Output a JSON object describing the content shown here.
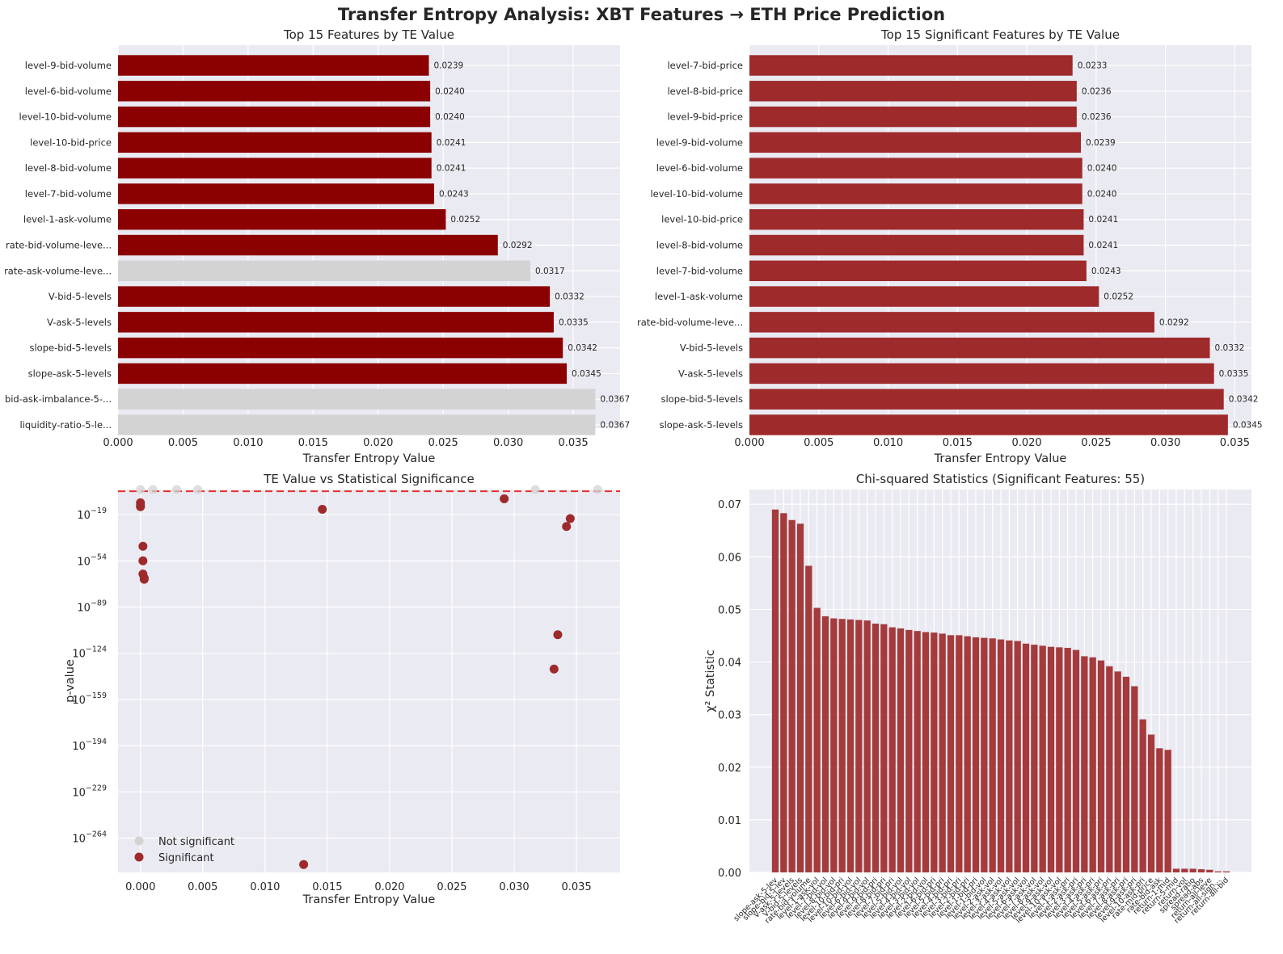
{
  "figure": {
    "title": "Transfer Entropy Analysis: XBT Features → ETH Price Prediction"
  },
  "colors": {
    "significant_dark": "#8b0000",
    "significant_mid": "#9e2a2b",
    "not_significant": "#d3d3d3",
    "threshold_line": "#e8312f",
    "panel_bg": "#eaeaf2",
    "grid": "#ffffff",
    "text": "#262626"
  },
  "chart_data": [
    {
      "type": "bar",
      "orientation": "horizontal",
      "title": "Top 15 Features by TE Value",
      "xlabel": "Transfer Entropy Value",
      "ylabel": "",
      "xlim": [
        0,
        0.0386
      ],
      "xticks": [
        "0.000",
        "0.005",
        "0.010",
        "0.015",
        "0.020",
        "0.025",
        "0.030",
        "0.035"
      ],
      "grid": true,
      "categories": [
        "level-9-bid-volume",
        "level-6-bid-volume",
        "level-10-bid-volume",
        "level-10-bid-price",
        "level-8-bid-volume",
        "level-7-bid-volume",
        "level-1-ask-volume",
        "rate-bid-volume-leve...",
        "rate-ask-volume-leve...",
        "V-bid-5-levels",
        "V-ask-5-levels",
        "slope-bid-5-levels",
        "slope-ask-5-levels",
        "bid-ask-imbalance-5-...",
        "liquidity-ratio-5-le..."
      ],
      "values": [
        0.0239,
        0.024,
        0.024,
        0.0241,
        0.0241,
        0.0243,
        0.0252,
        0.0292,
        0.0317,
        0.0332,
        0.0335,
        0.0342,
        0.0345,
        0.0367,
        0.0367
      ],
      "value_labels": [
        "0.0239",
        "0.0240",
        "0.0240",
        "0.0241",
        "0.0241",
        "0.0243",
        "0.0252",
        "0.0292",
        "0.0317",
        "0.0332",
        "0.0335",
        "0.0342",
        "0.0345",
        "0.0367",
        "0.0367"
      ],
      "significant": [
        true,
        true,
        true,
        true,
        true,
        true,
        true,
        true,
        false,
        true,
        true,
        true,
        true,
        false,
        false
      ]
    },
    {
      "type": "bar",
      "orientation": "horizontal",
      "title": "Top 15 Significant Features by TE Value",
      "xlabel": "Transfer Entropy Value",
      "ylabel": "",
      "xlim": [
        0,
        0.0362
      ],
      "xticks": [
        "0.000",
        "0.005",
        "0.010",
        "0.015",
        "0.020",
        "0.025",
        "0.030",
        "0.035"
      ],
      "grid": true,
      "categories": [
        "level-7-bid-price",
        "level-8-bid-price",
        "level-9-bid-price",
        "level-9-bid-volume",
        "level-6-bid-volume",
        "level-10-bid-volume",
        "level-10-bid-price",
        "level-8-bid-volume",
        "level-7-bid-volume",
        "level-1-ask-volume",
        "rate-bid-volume-leve...",
        "V-bid-5-levels",
        "V-ask-5-levels",
        "slope-bid-5-levels",
        "slope-ask-5-levels"
      ],
      "values": [
        0.0233,
        0.0236,
        0.0236,
        0.0239,
        0.024,
        0.024,
        0.0241,
        0.0241,
        0.0243,
        0.0252,
        0.0292,
        0.0332,
        0.0335,
        0.0342,
        0.0345
      ],
      "value_labels": [
        "0.0233",
        "0.0236",
        "0.0236",
        "0.0239",
        "0.0240",
        "0.0240",
        "0.0241",
        "0.0241",
        "0.0243",
        "0.0252",
        "0.0292",
        "0.0332",
        "0.0335",
        "0.0342",
        "0.0345"
      ]
    },
    {
      "type": "scatter",
      "title": "TE Value vs Statistical Significance",
      "xlabel": "Transfer Entropy Value",
      "ylabel": "p-value",
      "x_range": [
        -0.0018,
        0.0385
      ],
      "y_scale": "log",
      "log10_y_range": [
        -290,
        0
      ],
      "xticks": [
        "0.000",
        "0.005",
        "0.010",
        "0.015",
        "0.020",
        "0.025",
        "0.030",
        "0.035"
      ],
      "ytick_exponents": [
        "−19",
        "−54",
        "−89",
        "−124",
        "−159",
        "−194",
        "−229",
        "−264"
      ],
      "threshold_log10_p": -1.3,
      "legend": {
        "position": "lower-left",
        "entries": [
          "Not significant",
          "Significant"
        ]
      },
      "grid": true,
      "series": [
        {
          "name": "Not significant",
          "points": [
            [
              0.0,
              0
            ],
            [
              0.001,
              0
            ],
            [
              0.0029,
              0
            ],
            [
              0.0046,
              0
            ],
            [
              0.0317,
              0
            ],
            [
              0.0367,
              0
            ]
          ]
        },
        {
          "name": "Significant",
          "points": [
            [
              0.0,
              -10
            ],
            [
              0.0,
              -12
            ],
            [
              0.0,
              -13
            ],
            [
              0.0002,
              -43
            ],
            [
              0.0002,
              -54
            ],
            [
              0.0002,
              -64
            ],
            [
              0.0003,
              -67
            ],
            [
              0.0003,
              -68
            ],
            [
              0.0146,
              -15
            ],
            [
              0.0292,
              -7
            ],
            [
              0.0332,
              -136
            ],
            [
              0.0335,
              -110
            ],
            [
              0.0342,
              -28
            ],
            [
              0.0345,
              -22
            ],
            [
              0.0131,
              -284
            ]
          ]
        }
      ]
    },
    {
      "type": "bar",
      "title": "Chi-squared Statistics (Significant Features: 55)",
      "xlabel": "",
      "ylabel": "χ² Statistic",
      "ylim": [
        0,
        0.0728
      ],
      "yticks": [
        "0.00",
        "0.01",
        "0.02",
        "0.03",
        "0.04",
        "0.05",
        "0.06",
        "0.07"
      ],
      "grid": true,
      "categories": [
        "slope-ask-5-lev...",
        "slope-bid-5-lev...",
        "V-ask-5-levels",
        "V-bid-5-levels",
        "rate-bid-volume...",
        "level-1-ask-vol...",
        "level-7-bid-vol...",
        "level-8-bid-vol...",
        "level-10-bid-pri...",
        "level-10-bid-vol...",
        "level-6-bid-vol...",
        "level-9-bid-vol...",
        "level-9-bid-pri...",
        "level-8-bid-pri...",
        "level-7-bid-pri...",
        "level-5-bid-vol...",
        "level-4-bid-vol...",
        "level-3-bid-vol...",
        "level-2-bid-vol...",
        "level-6-bid-pri...",
        "level-5-bid-pri...",
        "level-4-bid-pri...",
        "level-3-bid-pri...",
        "level-2-bid-pri...",
        "level-1-bid-pri...",
        "level-1-bid-vol...",
        "level-2-ask-vol...",
        "level-3-ask-vol...",
        "level-4-ask-vol...",
        "level-5-ask-vol...",
        "level-6-ask-vol...",
        "level-7-ask-vol...",
        "level-8-ask-vol...",
        "level-9-ask-vol...",
        "level-10-ask-vol...",
        "level-1-ask-pri...",
        "level-2-ask-pri...",
        "level-3-ask-pri...",
        "level-4-ask-pri...",
        "level-5-ask-pri...",
        "level-6-ask-pri...",
        "level-7-ask-pri...",
        "level-8-ask-pri...",
        "level-9-ask-pri...",
        "level-10-ask-pri...",
        "rate-mid-price...",
        "rate-bid-ask...",
        "return-1-mid...",
        "return-5-mid...",
        "return-vol...",
        "spread-ratio...",
        "spread-abs...",
        "return-all-leve...",
        "return-all-sign...",
        "return-all-bid..."
      ],
      "values": [
        0.069,
        0.0683,
        0.067,
        0.0663,
        0.0583,
        0.0503,
        0.0487,
        0.0483,
        0.0482,
        0.0481,
        0.048,
        0.0479,
        0.0473,
        0.0472,
        0.0466,
        0.0464,
        0.0461,
        0.0459,
        0.0457,
        0.0456,
        0.0454,
        0.0451,
        0.0451,
        0.0449,
        0.0447,
        0.0446,
        0.0445,
        0.0443,
        0.0441,
        0.044,
        0.0435,
        0.0433,
        0.0431,
        0.0429,
        0.0428,
        0.0427,
        0.0423,
        0.0411,
        0.0409,
        0.0403,
        0.0392,
        0.0382,
        0.0372,
        0.0354,
        0.0291,
        0.0262,
        0.0236,
        0.0233,
        0.0007,
        0.0007,
        0.0007,
        0.0006,
        0.0005,
        0.0002,
        0.0002
      ],
      "tick_labels_shown": [
        "slope-ask-5-lev",
        "slope-bid-5-lev",
        "V-ask-5-levels",
        "V-bid-5-levels",
        "rate-bid-volume",
        "level-1-ask-vol",
        "level-7-bid-vol",
        "level-8-bid-vol",
        "level-10-bid-pri",
        "level-10-bid-vol",
        "level-6-bid-vol",
        "level-9-bid-vol",
        "level-9-bid-pri",
        "level-8-bid-pri",
        "level-7-bid-pri",
        "level-5-bid-vol",
        "level-4-bid-vol",
        "level-3-bid-vol",
        "level-2-bid-vol",
        "level-6-bid-pri",
        "level-5-bid-pri",
        "level-4-bid-pri",
        "level-3-bid-pri",
        "level-2-bid-pri",
        "level-1-bid-pri",
        "level-1-bid-vol",
        "level-2-ask-vol",
        "level-3-ask-vol",
        "level-4-ask-vol",
        "level-5-ask-vol",
        "level-6-ask-vol",
        "level-7-ask-vol",
        "level-8-ask-vol",
        "level-9-ask-vol",
        "level-10-ask-vol",
        "level-1-ask-pri",
        "level-2-ask-pri",
        "level-3-ask-pri",
        "level-4-ask-pri",
        "level-5-ask-pri",
        "level-6-ask-pri",
        "level-7-ask-pri",
        "level-8-ask-pri",
        "level-9-ask-pri",
        "level-10-ask-pri",
        "rate-mid-price",
        "rate-bid-ask",
        "return-1-mid",
        "return-5-mid",
        "return-vol",
        "spread-ratio",
        "spread-abs",
        "return-all-leve",
        "return-all-sign...",
        "return-all-bid"
      ]
    }
  ]
}
